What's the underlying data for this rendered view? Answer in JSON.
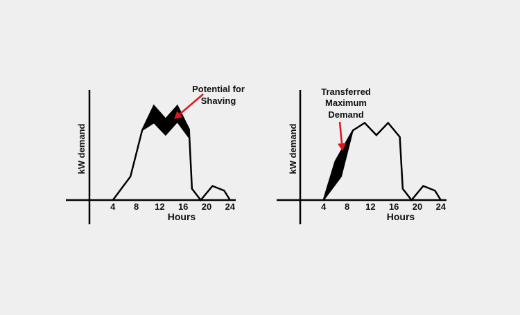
{
  "colors": {
    "background": "#efefef",
    "line": "#000000",
    "shaded": "#000000",
    "arrow": "#e0141c"
  },
  "chart_data": [
    {
      "type": "line",
      "xlabel": "Hours",
      "ylabel": "kW demand",
      "xticks": [
        "4",
        "8",
        "12",
        "16",
        "20",
        "24"
      ],
      "xlim": [
        0,
        24
      ],
      "ylim": [
        0,
        100
      ],
      "grid": false,
      "annotation": {
        "lines": [
          "Potential for",
          "Shaving"
        ]
      },
      "series": [
        {
          "x": [
            4,
            7,
            9,
            11,
            13,
            15,
            17,
            17.5,
            19,
            21,
            23,
            24
          ],
          "y": [
            0,
            25,
            74,
            100,
            86,
            100,
            75,
            12,
            0,
            15,
            10,
            0
          ]
        }
      ],
      "shaded_region": {
        "upper": {
          "x": [
            9,
            11,
            13,
            15,
            17
          ],
          "y": [
            74,
            100,
            86,
            100,
            75
          ]
        },
        "lower": {
          "x": [
            9,
            11,
            13,
            15,
            17
          ],
          "y": [
            74,
            82,
            69,
            83,
            66
          ]
        }
      }
    },
    {
      "type": "line",
      "xlabel": "Hours",
      "ylabel": "kW demand",
      "xticks": [
        "4",
        "8",
        "12",
        "16",
        "20",
        "24"
      ],
      "xlim": [
        0,
        24
      ],
      "ylim": [
        0,
        100
      ],
      "grid": false,
      "annotation": {
        "lines": [
          "Transferred",
          "Maximum",
          "Demand"
        ]
      },
      "series": [
        {
          "x": [
            4,
            6,
            9,
            11,
            13,
            15,
            17,
            17.5,
            19,
            21,
            23,
            24
          ],
          "y": [
            0,
            41,
            74,
            82,
            69,
            82,
            67,
            12,
            0,
            15,
            10,
            0
          ]
        }
      ],
      "shaded_region": {
        "upper": {
          "x": [
            4,
            6,
            9
          ],
          "y": [
            0,
            41,
            74
          ]
        },
        "lower": {
          "x": [
            4,
            7,
            9
          ],
          "y": [
            0,
            25,
            74
          ]
        }
      }
    }
  ]
}
